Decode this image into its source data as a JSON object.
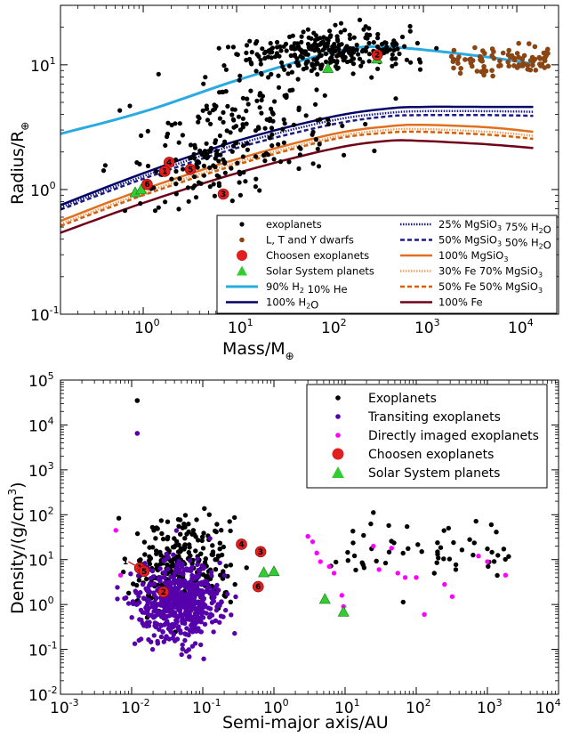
{
  "chart_data": [
    {
      "type": "scatter",
      "x_scale": "log",
      "y_scale": "log",
      "xlim": [
        0.13,
        28000
      ],
      "ylim": [
        0.1,
        30
      ],
      "xlabel_main": "Mass/M",
      "xlabel_sub": "⊕",
      "ylabel_main": "Radius/R",
      "ylabel_sub": "⊕",
      "x_ticks": [
        {
          "value": 1,
          "base": "10",
          "exp": "0"
        },
        {
          "value": 10,
          "base": "10",
          "exp": "1"
        },
        {
          "value": 100,
          "base": "10",
          "exp": "2"
        },
        {
          "value": 1000,
          "base": "10",
          "exp": "3"
        },
        {
          "value": 10000,
          "base": "10",
          "exp": "4"
        }
      ],
      "y_ticks": [
        {
          "value": 0.1,
          "base": "10",
          "exp": "-1"
        },
        {
          "value": 1,
          "base": "10",
          "exp": "0"
        },
        {
          "value": 10,
          "base": "10",
          "exp": "1"
        }
      ],
      "colors": {
        "exoplanet": "#000000",
        "dwarf": "#8B4513",
        "chosen": "#e02020",
        "solar": "#33cc33",
        "h2he": "#29abe2",
        "h2o": "#000066",
        "h2o_mg25": "#1a1a80",
        "h2o_mg50": "#1a1a80",
        "mgsio3": "#e07020",
        "fe30": "#f0a060",
        "fe50": "#d06010",
        "fe100": "#700018"
      },
      "legend_left": [
        "exoplanets",
        "L, T and Y dwarfs",
        "Choosen exoplanets",
        "Solar System planets",
        "90% H2 10% He",
        "100% H2O"
      ],
      "legend_right": [
        "25% MgSiO3 75% H2O",
        "50% MgSiO3 50% H2O",
        "100% MgSiO3",
        "30% Fe 70% MgSiO3",
        "50% Fe 50% MgSiO3",
        "100% Fe"
      ],
      "exoplanets_seed": 17,
      "exoplanets_count": 520,
      "dwarfs_count": 90,
      "chosen_points": [
        {
          "x": 320,
          "y": 12,
          "label": "2"
        },
        {
          "x": 1.9,
          "y": 1.65,
          "label": "4"
        },
        {
          "x": 1.7,
          "y": 1.4,
          "label": "1"
        },
        {
          "x": 1.1,
          "y": 1.1,
          "label": "6"
        },
        {
          "x": 3.2,
          "y": 1.45,
          "label": "5"
        },
        {
          "x": 7.2,
          "y": 0.92,
          "label": "3"
        }
      ],
      "solar_points": [
        {
          "x": 0.82,
          "y": 0.95
        },
        {
          "x": 0.95,
          "y": 1.0
        },
        {
          "x": 95,
          "y": 9.4
        },
        {
          "x": 318,
          "y": 11.2
        }
      ],
      "curves": [
        {
          "key": "h2he",
          "points": [
            [
              0.13,
              2.8
            ],
            [
              1,
              4.2
            ],
            [
              10,
              7.5
            ],
            [
              100,
              12.5
            ],
            [
              300,
              14
            ],
            [
              1000,
              13.2
            ],
            [
              5000,
              11.5
            ],
            [
              15000,
              10.2
            ]
          ]
        },
        {
          "key": "h2o",
          "points": [
            [
              0.13,
              0.75
            ],
            [
              1,
              1.35
            ],
            [
              10,
              2.45
            ],
            [
              100,
              3.8
            ],
            [
              400,
              4.45
            ],
            [
              1000,
              4.6
            ],
            [
              5000,
              4.6
            ],
            [
              15000,
              4.6
            ]
          ]
        },
        {
          "key": "h2o_mg25",
          "points": [
            [
              0.13,
              0.72
            ],
            [
              1,
              1.28
            ],
            [
              10,
              2.3
            ],
            [
              100,
              3.55
            ],
            [
              400,
              4.1
            ],
            [
              1000,
              4.25
            ],
            [
              5000,
              4.25
            ],
            [
              15000,
              4.2
            ]
          ]
        },
        {
          "key": "h2o_mg50",
          "points": [
            [
              0.13,
              0.69
            ],
            [
              1,
              1.22
            ],
            [
              10,
              2.15
            ],
            [
              100,
              3.3
            ],
            [
              400,
              3.85
            ],
            [
              1000,
              3.95
            ],
            [
              5000,
              3.95
            ],
            [
              15000,
              3.9
            ]
          ]
        },
        {
          "key": "mgsio3",
          "points": [
            [
              0.13,
              0.56
            ],
            [
              1,
              1.0
            ],
            [
              10,
              1.75
            ],
            [
              100,
              2.75
            ],
            [
              400,
              3.2
            ],
            [
              1000,
              3.3
            ],
            [
              5000,
              3.15
            ],
            [
              15000,
              2.9
            ]
          ]
        },
        {
          "key": "fe30",
          "points": [
            [
              0.13,
              0.53
            ],
            [
              1,
              0.94
            ],
            [
              10,
              1.65
            ],
            [
              100,
              2.6
            ],
            [
              400,
              3.0
            ],
            [
              1000,
              3.05
            ],
            [
              5000,
              2.9
            ],
            [
              15000,
              2.7
            ]
          ]
        },
        {
          "key": "fe50",
          "points": [
            [
              0.13,
              0.51
            ],
            [
              1,
              0.9
            ],
            [
              10,
              1.58
            ],
            [
              100,
              2.5
            ],
            [
              400,
              2.85
            ],
            [
              1000,
              2.9
            ],
            [
              5000,
              2.75
            ],
            [
              15000,
              2.55
            ]
          ]
        },
        {
          "key": "fe100",
          "points": [
            [
              0.13,
              0.45
            ],
            [
              1,
              0.78
            ],
            [
              10,
              1.35
            ],
            [
              100,
              2.1
            ],
            [
              400,
              2.45
            ],
            [
              1000,
              2.45
            ],
            [
              5000,
              2.3
            ],
            [
              15000,
              2.15
            ]
          ]
        }
      ]
    },
    {
      "type": "scatter",
      "x_scale": "log",
      "y_scale": "log",
      "xlim": [
        0.001,
        10000
      ],
      "ylim": [
        0.01,
        100000
      ],
      "xlabel": "Semi-major axis/AU",
      "ylabel_main": "Density/(g/cm",
      "ylabel_sup": "3",
      "ylabel_end": ")",
      "x_ticks": [
        {
          "value": 0.001,
          "base": "10",
          "exp": "-3"
        },
        {
          "value": 0.01,
          "base": "10",
          "exp": "-2"
        },
        {
          "value": 0.1,
          "base": "10",
          "exp": "-1"
        },
        {
          "value": 1,
          "base": "10",
          "exp": "0"
        },
        {
          "value": 10,
          "base": "10",
          "exp": "1"
        },
        {
          "value": 100,
          "base": "10",
          "exp": "2"
        },
        {
          "value": 1000,
          "base": "10",
          "exp": "3"
        },
        {
          "value": 10000,
          "base": "10",
          "exp": "4"
        }
      ],
      "y_ticks": [
        {
          "value": 0.01,
          "base": "10",
          "exp": "-2"
        },
        {
          "value": 0.1,
          "base": "10",
          "exp": "-1"
        },
        {
          "value": 1,
          "base": "10",
          "exp": "0"
        },
        {
          "value": 10,
          "base": "10",
          "exp": "1"
        },
        {
          "value": 100,
          "base": "10",
          "exp": "2"
        },
        {
          "value": 1000,
          "base": "10",
          "exp": "3"
        },
        {
          "value": 10000,
          "base": "10",
          "exp": "4"
        },
        {
          "value": 100000,
          "base": "10",
          "exp": "5"
        }
      ],
      "colors": {
        "exoplanet": "#000000",
        "transiting": "#5500aa",
        "imaged": "#ff00ff",
        "chosen": "#e02020",
        "solar": "#33cc33"
      },
      "legend": [
        "Exoplanets",
        "Transiting exoplanets",
        "Directly imaged exoplanets",
        "Choosen exoplanets",
        "Solar System planets"
      ],
      "exo_seed": 41,
      "exo_count": 330,
      "transiting_count": 560,
      "imaged_points": [
        {
          "x": 0.006,
          "y": 45
        },
        {
          "x": 0.007,
          "y": 4.5
        },
        {
          "x": 3,
          "y": 33
        },
        {
          "x": 3.5,
          "y": 25
        },
        {
          "x": 4,
          "y": 14
        },
        {
          "x": 4.5,
          "y": 9
        },
        {
          "x": 6,
          "y": 7
        },
        {
          "x": 7,
          "y": 5
        },
        {
          "x": 9,
          "y": 1.6
        },
        {
          "x": 9.5,
          "y": 0.9
        },
        {
          "x": 25,
          "y": 20
        },
        {
          "x": 30,
          "y": 6
        },
        {
          "x": 45,
          "y": 18
        },
        {
          "x": 55,
          "y": 5
        },
        {
          "x": 70,
          "y": 4
        },
        {
          "x": 100,
          "y": 4
        },
        {
          "x": 130,
          "y": 0.6
        },
        {
          "x": 250,
          "y": 2.8
        },
        {
          "x": 320,
          "y": 1.5
        },
        {
          "x": 750,
          "y": 12
        },
        {
          "x": 1000,
          "y": 9
        },
        {
          "x": 1800,
          "y": 4.5
        }
      ],
      "chosen_points": [
        {
          "x": 0.013,
          "y": 6.5,
          "label": "1"
        },
        {
          "x": 0.015,
          "y": 5.5,
          "label": "5"
        },
        {
          "x": 0.028,
          "y": 1.9,
          "label": "2"
        },
        {
          "x": 0.35,
          "y": 22,
          "label": "4"
        },
        {
          "x": 0.65,
          "y": 15,
          "label": "3"
        },
        {
          "x": 0.6,
          "y": 2.5,
          "label": "6"
        }
      ],
      "label_1": "1",
      "solar_points": [
        {
          "x": 0.72,
          "y": 5.2
        },
        {
          "x": 1.0,
          "y": 5.5
        },
        {
          "x": 5.2,
          "y": 1.33
        },
        {
          "x": 9.5,
          "y": 0.69
        }
      ]
    }
  ]
}
